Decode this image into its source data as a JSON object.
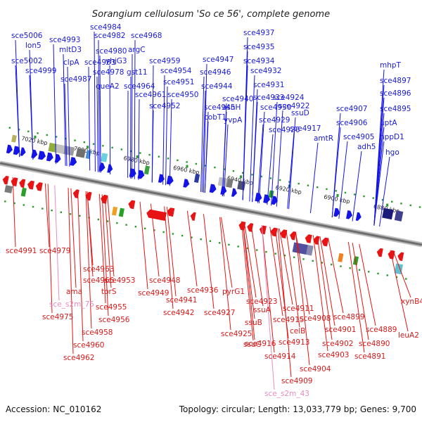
{
  "title": "Sorangium cellulosum 'So ce 56', complete genome",
  "footer": {
    "accession": "Accession: NC_010162",
    "topology": "Topology: circular; Length: 13,033,779 bp; Genes: 9,700"
  },
  "colors": {
    "forward_gene": "#1414e6",
    "reverse_gene": "#e61414",
    "rna_label": "#e88cc0",
    "backbone": "#888888",
    "tick": "#2a9a2a"
  },
  "kbp_ticks": [
    {
      "label": "7020 kbp"
    },
    {
      "label": "7000 kbp"
    },
    {
      "label": "6980 kbp"
    },
    {
      "label": "6960 kbp"
    },
    {
      "label": "6940 kbp"
    },
    {
      "label": "6920 kbp"
    },
    {
      "label": "6900 kbp"
    },
    {
      "label": "6880 kbp"
    }
  ],
  "forward_labels": [
    {
      "text": "sce5006"
    },
    {
      "text": "lon5"
    },
    {
      "text": "sce5002"
    },
    {
      "text": "sce4999"
    },
    {
      "text": "sce4993"
    },
    {
      "text": "mltD3"
    },
    {
      "text": "clpA"
    },
    {
      "text": "sce4987"
    },
    {
      "text": "sce4984"
    },
    {
      "text": "sce4982"
    },
    {
      "text": "sce4980"
    },
    {
      "text": "sce4983"
    },
    {
      "text": "sce4978"
    },
    {
      "text": "queA2"
    },
    {
      "text": "sce4968"
    },
    {
      "text": "argC"
    },
    {
      "text": "yhjG3"
    },
    {
      "text": "gst11"
    },
    {
      "text": "sce4964"
    },
    {
      "text": "sce4961"
    },
    {
      "text": "sce4959"
    },
    {
      "text": "sce4954"
    },
    {
      "text": "sce4951"
    },
    {
      "text": "sce4950"
    },
    {
      "text": "sce4952"
    },
    {
      "text": "sce4947"
    },
    {
      "text": "sce4946"
    },
    {
      "text": "sce4944"
    },
    {
      "text": "sce4945"
    },
    {
      "text": "cobT1"
    },
    {
      "text": "sce4937"
    },
    {
      "text": "sce4935"
    },
    {
      "text": "sce4934"
    },
    {
      "text": "sce4932"
    },
    {
      "text": "sce4931"
    },
    {
      "text": "sce4940"
    },
    {
      "text": "asnH"
    },
    {
      "text": "yvpA"
    },
    {
      "text": "sce4933"
    },
    {
      "text": "sce4930"
    },
    {
      "text": "sce4929"
    },
    {
      "text": "sce4926"
    },
    {
      "text": "sce4924"
    },
    {
      "text": "sce4922"
    },
    {
      "text": "ssuD"
    },
    {
      "text": "sce4917"
    },
    {
      "text": "amtR"
    },
    {
      "text": "sce4907"
    },
    {
      "text": "sce4906"
    },
    {
      "text": "sce4905"
    },
    {
      "text": "adh5"
    },
    {
      "text": "mhpT"
    },
    {
      "text": "sce4897"
    },
    {
      "text": "sce4896"
    },
    {
      "text": "sce4895"
    },
    {
      "text": "uptA"
    },
    {
      "text": "hppD1"
    },
    {
      "text": "hgo"
    }
  ],
  "reverse_labels": [
    {
      "text": "sce4991"
    },
    {
      "text": "sce4979"
    },
    {
      "text": "sce4963"
    },
    {
      "text": "sce4966"
    },
    {
      "text": "ama"
    },
    {
      "text": "torS"
    },
    {
      "text": "sce4953"
    },
    {
      "text": "sce_s2m_75",
      "rna": true
    },
    {
      "text": "sce4955"
    },
    {
      "text": "sce4975"
    },
    {
      "text": "sce4956"
    },
    {
      "text": "sce4958"
    },
    {
      "text": "sce4960"
    },
    {
      "text": "sce4962"
    },
    {
      "text": "sce4948"
    },
    {
      "text": "sce4949"
    },
    {
      "text": "sce4941"
    },
    {
      "text": "sce4942"
    },
    {
      "text": "sce4936"
    },
    {
      "text": "pyrG1"
    },
    {
      "text": "sce4927"
    },
    {
      "text": "sce4923"
    },
    {
      "text": "ssuA"
    },
    {
      "text": "ssuB"
    },
    {
      "text": "sce4925"
    },
    {
      "text": "sce4916"
    },
    {
      "text": "ssuC"
    },
    {
      "text": "sce4915"
    },
    {
      "text": "sce4913"
    },
    {
      "text": "sce4914"
    },
    {
      "text": "sce4911"
    },
    {
      "text": "sce4908"
    },
    {
      "text": "celB"
    },
    {
      "text": "sce4903"
    },
    {
      "text": "sce4904"
    },
    {
      "text": "sce4909"
    },
    {
      "text": "sce_s2m_43",
      "rna": true
    },
    {
      "text": "sce4899"
    },
    {
      "text": "sce4901"
    },
    {
      "text": "sce4902"
    },
    {
      "text": "sce4889"
    },
    {
      "text": "sce4890"
    },
    {
      "text": "sce4891"
    },
    {
      "text": "xynB4"
    },
    {
      "text": "leuA2"
    }
  ]
}
